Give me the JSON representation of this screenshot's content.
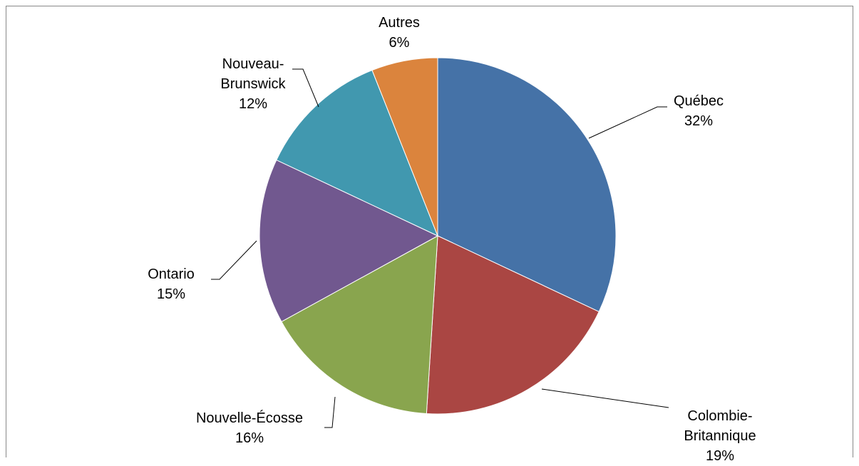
{
  "chart_data": {
    "type": "pie",
    "categories": [
      "Québec",
      "Colombie-Britannique",
      "Nouvelle-Écosse",
      "Ontario",
      "Nouveau-Brunswick",
      "Autres"
    ],
    "values": [
      32,
      19,
      16,
      15,
      12,
      6
    ],
    "value_labels": [
      "32%",
      "19%",
      "16%",
      "15%",
      "12%",
      "6%"
    ],
    "colors": [
      "#4572a7",
      "#aa4643",
      "#89a54e",
      "#71588f",
      "#4198af",
      "#db843d"
    ]
  }
}
